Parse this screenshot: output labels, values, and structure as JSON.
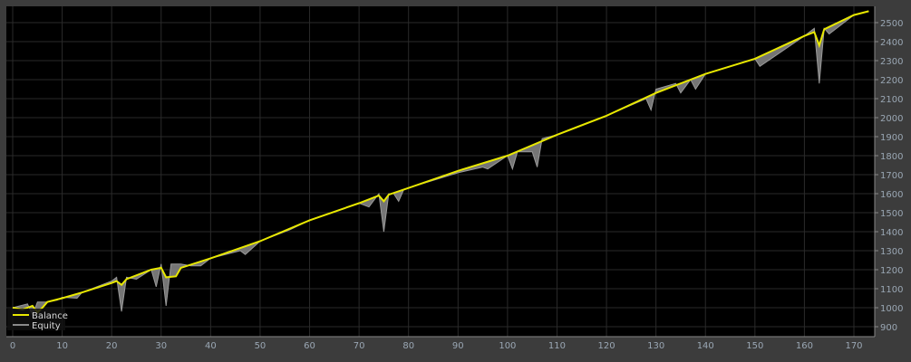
{
  "chart_data": {
    "type": "line",
    "title": "",
    "xlabel": "",
    "ylabel": "",
    "xlim": [
      0,
      175
    ],
    "ylim": [
      820,
      2600
    ],
    "x_ticks": [
      0,
      10,
      20,
      30,
      40,
      50,
      60,
      70,
      80,
      90,
      100,
      110,
      120,
      130,
      140,
      150,
      160,
      170
    ],
    "y_ticks": [
      900,
      1000,
      1100,
      1200,
      1300,
      1400,
      1500,
      1600,
      1700,
      1800,
      1900,
      2000,
      2100,
      2200,
      2300,
      2400,
      2500
    ],
    "grid": true,
    "legend": "bottom-left",
    "colors": {
      "background": "#000000",
      "frame": "#3c3c3c",
      "grid": "#2a2a2a",
      "balance": "#e8e800",
      "equity": "#8a8a8a",
      "axis_text": "#9aa7b4"
    },
    "series": [
      {
        "name": "Balance",
        "points": [
          [
            0,
            1000
          ],
          [
            2,
            990
          ],
          [
            4,
            1010
          ],
          [
            5,
            975
          ],
          [
            6,
            1000
          ],
          [
            7,
            1030
          ],
          [
            10,
            1050
          ],
          [
            14,
            1080
          ],
          [
            20,
            1130
          ],
          [
            21,
            1140
          ],
          [
            22,
            1120
          ],
          [
            23,
            1150
          ],
          [
            28,
            1200
          ],
          [
            30,
            1210
          ],
          [
            31,
            1160
          ],
          [
            33,
            1165
          ],
          [
            34,
            1210
          ],
          [
            40,
            1260
          ],
          [
            50,
            1350
          ],
          [
            60,
            1460
          ],
          [
            70,
            1550
          ],
          [
            74,
            1590
          ],
          [
            75,
            1560
          ],
          [
            76,
            1595
          ],
          [
            80,
            1630
          ],
          [
            90,
            1720
          ],
          [
            100,
            1800
          ],
          [
            110,
            1910
          ],
          [
            120,
            2010
          ],
          [
            130,
            2130
          ],
          [
            140,
            2230
          ],
          [
            150,
            2310
          ],
          [
            160,
            2430
          ],
          [
            162,
            2450
          ],
          [
            163,
            2380
          ],
          [
            164,
            2465
          ],
          [
            170,
            2540
          ],
          [
            173,
            2560
          ]
        ]
      },
      {
        "name": "Equity",
        "points": [
          [
            0,
            1000
          ],
          [
            3,
            1020
          ],
          [
            4,
            960
          ],
          [
            5,
            1030
          ],
          [
            7,
            1030
          ],
          [
            9,
            1040
          ],
          [
            10,
            1055
          ],
          [
            13,
            1050
          ],
          [
            14,
            1080
          ],
          [
            20,
            1140
          ],
          [
            21,
            1160
          ],
          [
            22,
            980
          ],
          [
            23,
            1160
          ],
          [
            25,
            1150
          ],
          [
            28,
            1200
          ],
          [
            29,
            1110
          ],
          [
            30,
            1230
          ],
          [
            31,
            1010
          ],
          [
            32,
            1230
          ],
          [
            34,
            1230
          ],
          [
            36,
            1220
          ],
          [
            38,
            1220
          ],
          [
            40,
            1260
          ],
          [
            46,
            1300
          ],
          [
            47,
            1280
          ],
          [
            50,
            1350
          ],
          [
            56,
            1410
          ],
          [
            60,
            1460
          ],
          [
            70,
            1550
          ],
          [
            72,
            1530
          ],
          [
            74,
            1600
          ],
          [
            75,
            1400
          ],
          [
            76,
            1600
          ],
          [
            77,
            1600
          ],
          [
            78,
            1560
          ],
          [
            79,
            1620
          ],
          [
            80,
            1630
          ],
          [
            90,
            1710
          ],
          [
            95,
            1740
          ],
          [
            96,
            1730
          ],
          [
            100,
            1800
          ],
          [
            101,
            1730
          ],
          [
            102,
            1820
          ],
          [
            105,
            1820
          ],
          [
            106,
            1740
          ],
          [
            107,
            1890
          ],
          [
            110,
            1910
          ],
          [
            120,
            2010
          ],
          [
            128,
            2100
          ],
          [
            129,
            2040
          ],
          [
            130,
            2150
          ],
          [
            134,
            2180
          ],
          [
            135,
            2130
          ],
          [
            137,
            2200
          ],
          [
            138,
            2150
          ],
          [
            140,
            2230
          ],
          [
            150,
            2310
          ],
          [
            151,
            2270
          ],
          [
            160,
            2430
          ],
          [
            162,
            2470
          ],
          [
            163,
            2180
          ],
          [
            164,
            2470
          ],
          [
            165,
            2440
          ],
          [
            170,
            2540
          ],
          [
            173,
            2560
          ]
        ]
      }
    ]
  }
}
